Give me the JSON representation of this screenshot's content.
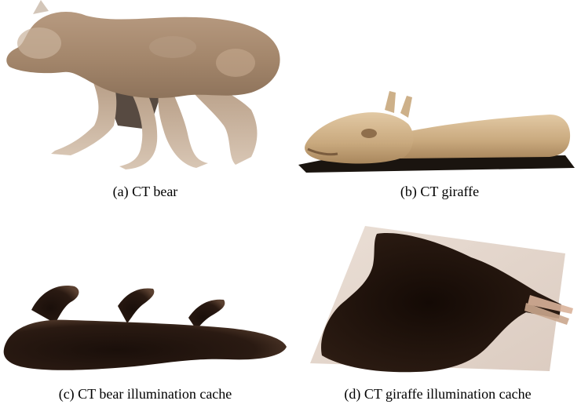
{
  "figure": {
    "panels": [
      {
        "caption": "(a)  CT bear"
      },
      {
        "caption": "(b)  CT giraffe"
      },
      {
        "caption": "(c)  CT bear illumination cache"
      },
      {
        "caption": "(d)  CT giraffe illumination cache"
      }
    ]
  }
}
